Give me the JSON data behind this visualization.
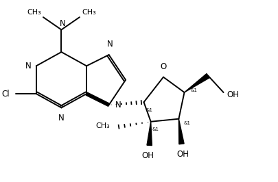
{
  "background_color": "#ffffff",
  "line_color": "#000000",
  "line_width": 1.4,
  "font_size": 8.5,
  "figsize": [
    4.06,
    2.66
  ],
  "dpi": 100,
  "xlim": [
    0,
    9.5
  ],
  "ylim": [
    0,
    6.5
  ]
}
